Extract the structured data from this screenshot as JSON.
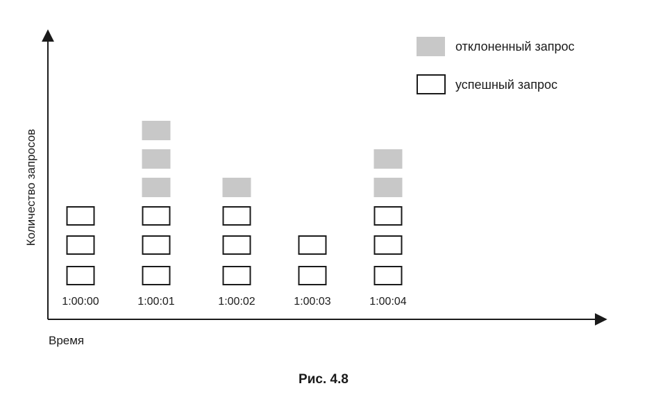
{
  "figure": {
    "caption": "Рис. 4.8",
    "y_axis_label": "Количество запросов",
    "x_axis_label": "Время",
    "legend": {
      "rejected_label": "отклоненный запрос",
      "success_label": "успешный запрос"
    },
    "colors": {
      "rejected_fill": "#c8c8c8",
      "success_stroke": "#1a1a1a",
      "axis": "#1a1a1a"
    }
  },
  "chart_data": {
    "type": "bar",
    "categories": [
      "1:00:00",
      "1:00:01",
      "1:00:02",
      "1:00:03",
      "1:00:04"
    ],
    "series": [
      {
        "name": "успешный запрос",
        "values": [
          3,
          3,
          3,
          2,
          3
        ]
      },
      {
        "name": "отклоненный запрос",
        "values": [
          0,
          3,
          1,
          0,
          2
        ]
      }
    ]
  }
}
